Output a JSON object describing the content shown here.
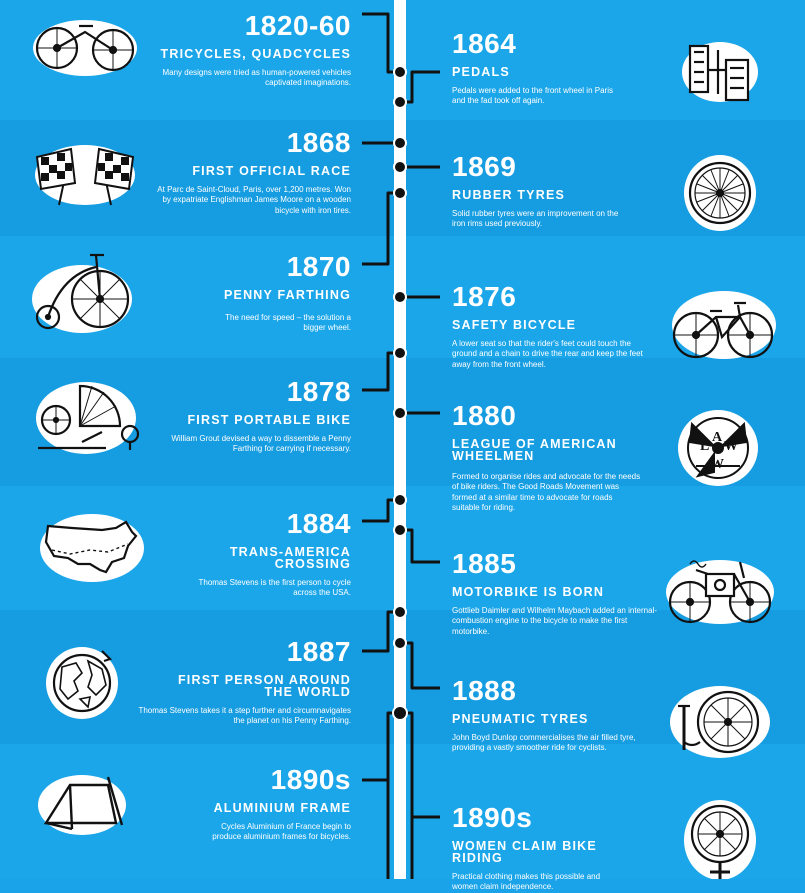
{
  "colors": {
    "background": "#1aa3e8",
    "timeline": "#ffffff",
    "ink": "#111111"
  },
  "events": [
    {
      "id": "e1820",
      "side": "left",
      "year": "1820-60",
      "title": "TRICYCLES, QUADCYCLES",
      "desc": "Many designs were tried as human-powered vehicles captivated imaginations.",
      "icon": "tricycle-icon"
    },
    {
      "id": "e1864",
      "side": "right",
      "year": "1864",
      "title": "PEDALS",
      "desc": "Pedals were added to the front wheel in Paris and the fad took off again.",
      "icon": "pedals-icon"
    },
    {
      "id": "e1868",
      "side": "left",
      "year": "1868",
      "title": "FIRST OFFICIAL RACE",
      "desc": "At Parc de Saint-Cloud, Paris, over 1,200 metres. Won by expatriate Englishman James Moore on a wooden bicycle with iron tires.",
      "icon": "checkered-flags-icon"
    },
    {
      "id": "e1869",
      "side": "right",
      "year": "1869",
      "title": "RUBBER TYRES",
      "desc": "Solid rubber tyres were an improvement on the iron rims used previously.",
      "icon": "wheel-icon"
    },
    {
      "id": "e1870",
      "side": "left",
      "year": "1870",
      "title": "PENNY FARTHING",
      "desc": "The need for speed – the solution a bigger wheel.",
      "icon": "penny-farthing-icon"
    },
    {
      "id": "e1876",
      "side": "right",
      "year": "1876",
      "title": "SAFETY BICYCLE",
      "desc": "A lower seat so that the rider's feet could touch the ground and a chain to drive the rear and keep the feet away from the front wheel.",
      "icon": "safety-bicycle-icon"
    },
    {
      "id": "e1878",
      "side": "left",
      "year": "1878",
      "title": "FIRST PORTABLE BIKE",
      "desc": "William Grout devised a way to dissemble a Penny Farthing for carrying if necessary.",
      "icon": "portable-bike-icon"
    },
    {
      "id": "e1880",
      "side": "right",
      "year": "1880",
      "title": "LEAGUE OF AMERICAN WHEELMEN",
      "desc": "Formed to organise rides and advocate for the needs of bike riders. The Good Roads Movement was formed at a similar time to advocate for roads suitable for riding.",
      "icon": "law-emblem-icon"
    },
    {
      "id": "e1884",
      "side": "left",
      "year": "1884",
      "title": "TRANS-AMERICA CROSSING",
      "desc": "Thomas Stevens is the first person to cycle across the USA.",
      "icon": "usa-map-icon"
    },
    {
      "id": "e1885",
      "side": "right",
      "year": "1885",
      "title": "MOTORBIKE IS BORN",
      "desc": "Gottlieb Daimler and Wilhelm Maybach added an internal-combustion engine to the bicycle to make the first motorbike.",
      "icon": "motorbike-icon"
    },
    {
      "id": "e1887",
      "side": "left",
      "year": "1887",
      "title": "FIRST PERSON AROUND THE WORLD",
      "desc": "Thomas Stevens takes it a step further and circumnavigates the planet on his Penny Farthing.",
      "icon": "globe-icon"
    },
    {
      "id": "e1888",
      "side": "right",
      "year": "1888",
      "title": "PNEUMATIC TYRES",
      "desc": "John Boyd Dunlop commercialises the air filled tyre, providing a vastly smoother ride for cyclists.",
      "icon": "pump-wheel-icon"
    },
    {
      "id": "e1890a",
      "side": "left",
      "year": "1890s",
      "title": "ALUMINIUM FRAME",
      "desc": "Cycles Aluminium of France begin to produce aluminium frames for bicycles.",
      "icon": "frame-icon"
    },
    {
      "id": "e1890b",
      "side": "right",
      "year": "1890s",
      "title": "WOMEN CLAIM BIKE RIDING",
      "desc": "Practical clothing makes this possible and women claim independence.",
      "icon": "female-wheel-icon"
    }
  ]
}
